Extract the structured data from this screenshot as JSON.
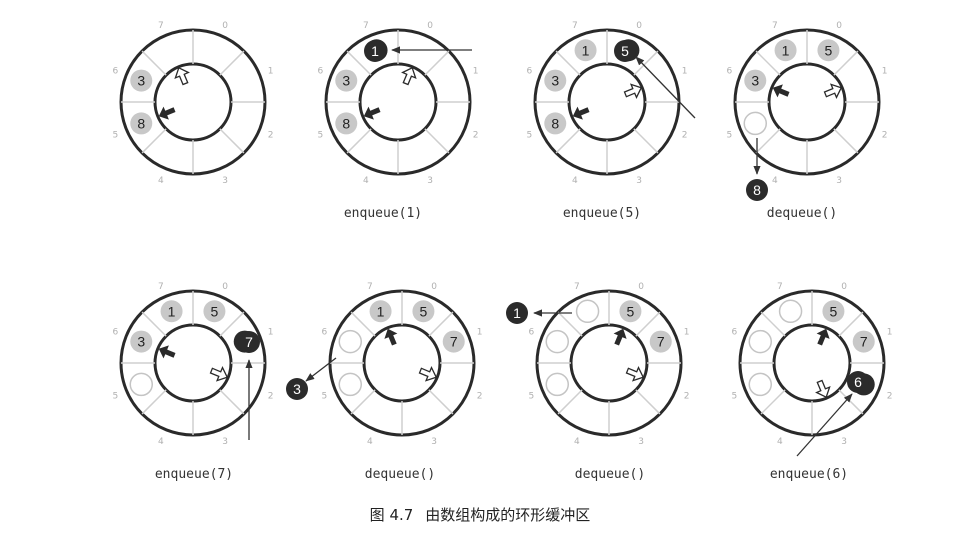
{
  "colors": {
    "ring_stroke": "#2a2a2a",
    "spoke_stroke": "#cfcfcf",
    "index_text": "#b0b0b0",
    "light_node_fill": "#c8c8c8",
    "light_node_text": "#222222",
    "dark_node_fill": "#2b2b2b",
    "dark_node_text": "#ffffff",
    "empty_node_stroke": "#c4c4c4",
    "arrow": "#333333"
  },
  "slot_indices": [
    "0",
    "1",
    "2",
    "3",
    "4",
    "5",
    "6",
    "7"
  ],
  "buffers": [
    {
      "label": "",
      "slots": {
        "0": null,
        "1": null,
        "2": null,
        "3": null,
        "4": null,
        "5": "8",
        "6": "3",
        "7": null
      },
      "empty_slots": [],
      "read_pointer": "pointing at slot 5",
      "write_pointer": "pointing at slot 7",
      "op_value": null
    },
    {
      "label": "enqueue(1)",
      "slots": {
        "0": null,
        "1": null,
        "2": null,
        "3": null,
        "4": null,
        "5": "8",
        "6": "3",
        "7": "1"
      },
      "empty_slots": [],
      "highlight_slot": "7",
      "op_arrow": "in from right",
      "read_pointer": "pointing at slot 5",
      "write_pointer": "pointing at slot 0",
      "op_value": "1"
    },
    {
      "label": "enqueue(5)",
      "slots": {
        "0": "5",
        "1": null,
        "2": null,
        "3": null,
        "4": null,
        "5": "8",
        "6": "3",
        "7": "1"
      },
      "empty_slots": [],
      "highlight_slot": "0",
      "op_arrow": "in from lower right",
      "read_pointer": "pointing at slot 5",
      "write_pointer": "pointing at slot 1",
      "op_value": "5"
    },
    {
      "label": "dequeue()",
      "slots": {
        "0": "5",
        "1": null,
        "2": null,
        "3": null,
        "4": null,
        "5": null,
        "6": "3",
        "7": "1"
      },
      "empty_slots": [
        "5"
      ],
      "op_arrow": "out downward",
      "read_pointer": "pointing at slot 6",
      "write_pointer": "pointing at slot 1",
      "op_value": "8"
    },
    {
      "label": "enqueue(7)",
      "slots": {
        "0": "5",
        "1": "7",
        "2": null,
        "3": null,
        "4": null,
        "5": null,
        "6": "3",
        "7": "1"
      },
      "empty_slots": [
        "5"
      ],
      "highlight_slot": "1",
      "op_arrow": "in from below",
      "read_pointer": "pointing at slot 6",
      "write_pointer": "pointing at slot 2",
      "op_value": "7"
    },
    {
      "label": "dequeue()",
      "slots": {
        "0": "5",
        "1": "7",
        "2": null,
        "3": null,
        "4": null,
        "5": null,
        "6": null,
        "7": "1"
      },
      "empty_slots": [
        "5",
        "6"
      ],
      "op_arrow": "out lower left",
      "read_pointer": "pointing at slot 7",
      "write_pointer": "pointing at slot 2",
      "op_value": "3"
    },
    {
      "label": "dequeue()",
      "slots": {
        "0": "5",
        "1": "7",
        "2": null,
        "3": null,
        "4": null,
        "5": null,
        "6": null,
        "7": null
      },
      "empty_slots": [
        "5",
        "6",
        "7"
      ],
      "op_arrow": "out to left",
      "read_pointer": "pointing at slot 0",
      "write_pointer": "pointing at slot 2",
      "op_value": "1"
    },
    {
      "label": "enqueue(6)",
      "slots": {
        "0": "5",
        "1": "7",
        "2": "6",
        "3": null,
        "4": null,
        "5": null,
        "6": null,
        "7": null
      },
      "empty_slots": [
        "5",
        "6",
        "7"
      ],
      "highlight_slot": "2",
      "op_arrow": "in from lower left",
      "read_pointer": "pointing at slot 0",
      "write_pointer": "pointing at slot 3",
      "op_value": "6"
    }
  ],
  "caption": {
    "number": "图 4.7",
    "text": "由数组构成的环形缓冲区"
  }
}
